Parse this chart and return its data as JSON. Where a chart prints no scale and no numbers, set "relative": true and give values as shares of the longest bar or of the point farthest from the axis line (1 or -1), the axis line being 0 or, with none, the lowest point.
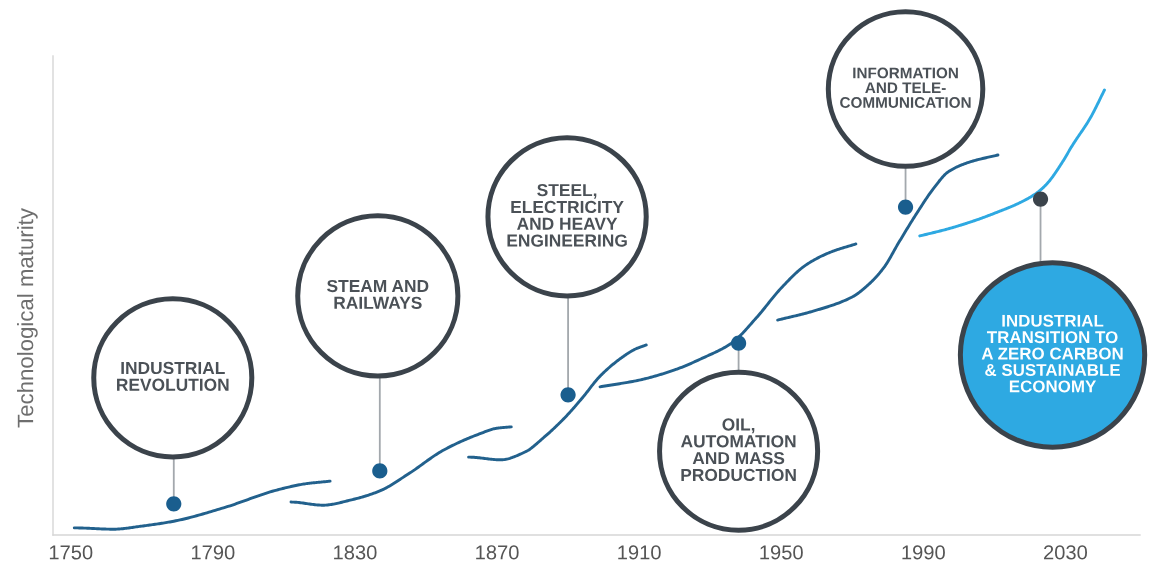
{
  "chart_data": {
    "type": "line",
    "ylabel": "Technological maturity",
    "relative": true,
    "xlim": [
      1745,
      2051
    ],
    "xticks": [
      1750,
      1790,
      1830,
      1870,
      1910,
      1950,
      1990,
      2030
    ],
    "series": [
      {
        "color": "#22618d",
        "x": [
          1751,
          1762,
          1770,
          1779,
          1793,
          1808,
          1816,
          1823
        ],
        "values": [
          0.016,
          0.013,
          0.02,
          0.031,
          0.061,
          0.101,
          0.115,
          0.121
        ]
      },
      {
        "color": "#22618d",
        "x": [
          1812,
          1821,
          1829,
          1837,
          1845,
          1855,
          1865,
          1870,
          1874
        ],
        "values": [
          0.074,
          0.067,
          0.079,
          0.099,
          0.137,
          0.191,
          0.227,
          0.24,
          0.243
        ]
      },
      {
        "color": "#22618d",
        "x": [
          1862,
          1871,
          1878,
          1883,
          1889,
          1894,
          1899,
          1905,
          1909,
          1912
        ],
        "values": [
          0.175,
          0.169,
          0.187,
          0.218,
          0.263,
          0.308,
          0.357,
          0.398,
          0.418,
          0.427
        ]
      },
      {
        "color": "#22618d",
        "x": [
          1899,
          1910,
          1920,
          1928,
          1936,
          1943,
          1950,
          1957,
          1964,
          1971
        ],
        "values": [
          0.333,
          0.348,
          0.371,
          0.398,
          0.431,
          0.488,
          0.555,
          0.607,
          0.636,
          0.654
        ]
      },
      {
        "color": "#22618d",
        "x": [
          1949,
          1959,
          1970,
          1975,
          1979,
          1983,
          1988,
          1993,
          1997,
          2003,
          2011
        ],
        "values": [
          0.483,
          0.503,
          0.535,
          0.566,
          0.602,
          0.656,
          0.721,
          0.78,
          0.816,
          0.838,
          0.854
        ]
      },
      {
        "color": "#2ea9e2",
        "x": [
          1989,
          1997,
          2005,
          2011,
          2017,
          2022,
          2025,
          2029,
          2032,
          2037,
          2041
        ],
        "values": [
          0.672,
          0.688,
          0.708,
          0.726,
          0.746,
          0.769,
          0.791,
          0.836,
          0.876,
          0.937,
          1.0
        ]
      },
      {
        "type": "scatter",
        "marker": "circle",
        "x": [
          1779,
          1837,
          1890,
          1938,
          1985,
          2023
        ],
        "values": [
          0.07,
          0.144,
          0.315,
          0.431,
          0.737,
          0.755
        ],
        "colors": [
          "#1a5e8e",
          "#1a5e8e",
          "#1a5e8e",
          "#1a5e8e",
          "#1a5e8e",
          "#3b434b"
        ]
      }
    ],
    "annotations": [
      {
        "text": "INDUSTRIAL\nREVOLUTION",
        "x": 1779,
        "y": 0.07
      },
      {
        "text": "STEAM AND\nRAILWAYS",
        "x": 1837,
        "y": 0.144
      },
      {
        "text": "STEEL,\nELECTRICITY\nAND HEAVY\nENGINEERING",
        "x": 1890,
        "y": 0.315
      },
      {
        "text": "OIL,\nAUTOMATION\nAND MASS\nPRODUCTION",
        "x": 1938,
        "y": 0.431
      },
      {
        "text": "INFORMATION\nAND TELE-\nCOMMUNICATION",
        "x": 1985,
        "y": 0.737
      },
      {
        "text": "INDUSTRIAL\nTRANSITION TO\nA ZERO CARBON\n& SUSTAINABLE\nECONOMY",
        "x": 2023,
        "y": 0.755
      }
    ]
  }
}
